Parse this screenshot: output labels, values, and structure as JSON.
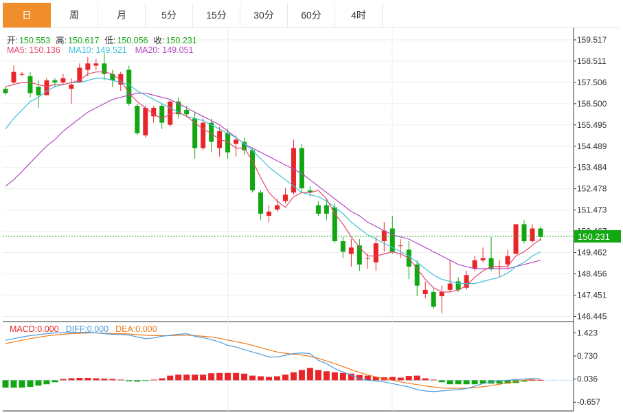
{
  "tabs": [
    {
      "label": "日",
      "active": true
    },
    {
      "label": "周",
      "active": false
    },
    {
      "label": "月",
      "active": false
    },
    {
      "label": "5分",
      "active": false
    },
    {
      "label": "15分",
      "active": false
    },
    {
      "label": "30分",
      "active": false
    },
    {
      "label": "60分",
      "active": false
    },
    {
      "label": "4时",
      "active": false
    }
  ],
  "ohlc": {
    "open_label": "开:",
    "open": "150.553",
    "high_label": "高:",
    "high": "150.617",
    "low_label": "低:",
    "low": "150.056",
    "close_label": "收:",
    "close": "150.231"
  },
  "ma_legend": {
    "ma5": "MA5: 150.136",
    "ma10": "MA10: 149.521",
    "ma20": "MA20: 149.051"
  },
  "macd_legend": {
    "macd": "MACD:0.000",
    "diff": "DIFF:0.000",
    "dea": "DEA:0.000"
  },
  "colors": {
    "up": "#e8262a",
    "down": "#13a613",
    "ma5": "#e6486f",
    "ma10": "#3fc0d8",
    "ma20": "#b24ac2",
    "diff": "#4d9bdd",
    "dea": "#f07b1a",
    "last_price": "#12a812",
    "active_tab": "#f08e2c"
  },
  "chart_data": {
    "type": "candlestick",
    "price_axis": {
      "ticks": [
        "159.517",
        "158.511",
        "157.506",
        "156.500",
        "155.495",
        "154.489",
        "153.484",
        "152.478",
        "151.473",
        "150.467",
        "149.462",
        "148.456",
        "147.451",
        "146.445"
      ],
      "range": [
        146.2,
        160.1
      ],
      "last_price": "150.231"
    },
    "macd_axis": {
      "ticks": [
        "1.423",
        "0.730",
        "0.036",
        "-0.657"
      ],
      "range": [
        -0.92,
        1.72
      ]
    },
    "candles": [
      [
        157.2,
        157.0,
        157.3,
        156.9
      ],
      [
        157.5,
        158.0,
        158.3,
        157.4
      ],
      [
        157.9,
        157.9,
        158.0,
        157.8
      ],
      [
        157.8,
        157.0,
        158.0,
        156.8
      ],
      [
        157.3,
        156.9,
        157.6,
        156.3
      ],
      [
        156.9,
        157.6,
        157.7,
        156.9
      ],
      [
        157.6,
        157.5,
        157.7,
        157.3
      ],
      [
        157.5,
        157.7,
        157.9,
        157.4
      ],
      [
        157.2,
        157.4,
        157.7,
        156.5
      ],
      [
        157.5,
        158.2,
        158.4,
        157.5
      ],
      [
        158.1,
        158.4,
        158.7,
        157.8
      ],
      [
        158.3,
        158.4,
        158.6,
        158.1
      ],
      [
        158.4,
        157.9,
        158.9,
        157.6
      ],
      [
        157.9,
        157.6,
        158.1,
        157.3
      ],
      [
        157.4,
        157.9,
        158.0,
        157.1
      ],
      [
        158.1,
        156.5,
        158.3,
        156.4
      ],
      [
        156.4,
        155.1,
        156.5,
        155.0
      ],
      [
        155.0,
        156.3,
        156.4,
        154.9
      ],
      [
        155.9,
        156.3,
        156.4,
        155.6
      ],
      [
        156.4,
        155.6,
        156.5,
        155.3
      ],
      [
        155.5,
        156.6,
        156.7,
        155.4
      ],
      [
        156.6,
        156.0,
        156.8,
        155.8
      ],
      [
        156.2,
        156.0,
        156.4,
        155.9
      ],
      [
        155.8,
        154.4,
        156.1,
        153.9
      ],
      [
        154.4,
        155.6,
        155.8,
        154.3
      ],
      [
        155.6,
        154.7,
        155.8,
        154.2
      ],
      [
        154.4,
        155.2,
        155.4,
        154.0
      ],
      [
        155.1,
        154.2,
        155.3,
        153.9
      ],
      [
        154.6,
        154.8,
        155.0,
        154.0
      ],
      [
        154.7,
        154.3,
        154.9,
        154.1
      ],
      [
        154.3,
        152.4,
        154.4,
        152.3
      ],
      [
        152.3,
        151.3,
        152.4,
        151.0
      ],
      [
        151.2,
        151.4,
        151.7,
        150.9
      ],
      [
        151.5,
        151.7,
        152.0,
        151.4
      ],
      [
        151.9,
        152.2,
        152.5,
        151.8
      ],
      [
        152.3,
        154.4,
        154.8,
        152.2
      ],
      [
        154.4,
        152.5,
        154.6,
        152.3
      ],
      [
        152.4,
        152.3,
        152.6,
        152.1
      ],
      [
        151.7,
        151.3,
        151.9,
        151.2
      ],
      [
        151.7,
        151.3,
        152.0,
        151.0
      ],
      [
        151.6,
        150.0,
        151.8,
        149.9
      ],
      [
        150.0,
        149.5,
        150.2,
        149.2
      ],
      [
        149.4,
        149.7,
        150.1,
        148.8
      ],
      [
        149.8,
        148.9,
        150.1,
        148.6
      ],
      [
        149.2,
        149.2,
        149.4,
        148.7
      ],
      [
        149.0,
        149.9,
        150.2,
        148.6
      ],
      [
        150.0,
        150.5,
        150.9,
        149.5
      ],
      [
        150.6,
        149.5,
        151.2,
        149.4
      ],
      [
        149.8,
        149.8,
        150.1,
        149.2
      ],
      [
        149.6,
        148.8,
        150.0,
        148.2
      ],
      [
        148.9,
        147.9,
        149.1,
        147.4
      ],
      [
        147.5,
        147.7,
        148.1,
        147.3
      ],
      [
        147.6,
        146.9,
        147.8,
        146.8
      ],
      [
        147.4,
        147.6,
        147.9,
        146.6
      ],
      [
        147.7,
        148.0,
        149.1,
        147.6
      ],
      [
        148.1,
        147.7,
        148.3,
        147.6
      ],
      [
        147.8,
        148.4,
        148.6,
        147.7
      ],
      [
        148.7,
        149.1,
        149.3,
        148.6
      ],
      [
        149.1,
        149.2,
        149.7,
        149.0
      ],
      [
        149.2,
        148.7,
        150.2,
        148.6
      ],
      [
        148.8,
        148.8,
        149.1,
        148.3
      ],
      [
        148.9,
        149.3,
        149.6,
        148.7
      ],
      [
        149.4,
        150.8,
        150.8,
        149.4
      ],
      [
        150.8,
        150.0,
        151.0,
        149.9
      ],
      [
        150.0,
        150.6,
        150.8,
        149.9
      ],
      [
        150.6,
        150.2,
        150.7,
        150.0
      ]
    ],
    "ma5": [
      157.3,
      157.4,
      157.5,
      157.5,
      157.4,
      157.3,
      157.4,
      157.4,
      157.5,
      157.6,
      157.9,
      158.0,
      158.0,
      157.9,
      157.6,
      157.0,
      156.6,
      156.3,
      156.0,
      155.8,
      156.0,
      156.1,
      155.9,
      155.6,
      155.3,
      155.1,
      154.8,
      154.7,
      154.4,
      154.4,
      153.8,
      153.0,
      152.3,
      151.9,
      151.6,
      152.1,
      152.3,
      152.3,
      152.4,
      152.0,
      151.3,
      150.8,
      150.2,
      149.7,
      149.3,
      149.3,
      149.4,
      149.5,
      149.4,
      149.2,
      148.7,
      148.2,
      147.8,
      147.6,
      147.6,
      147.7,
      147.9,
      148.3,
      148.6,
      148.8,
      148.8,
      148.8,
      149.3,
      149.5,
      149.8,
      150.1
    ],
    "ma10": [
      155.3,
      155.8,
      156.2,
      156.6,
      156.8,
      157.1,
      157.3,
      157.4,
      157.5,
      157.5,
      157.6,
      157.7,
      157.7,
      157.6,
      157.5,
      157.4,
      157.1,
      156.9,
      156.7,
      156.5,
      156.3,
      156.1,
      155.9,
      155.8,
      155.7,
      155.5,
      155.3,
      155.1,
      154.9,
      154.6,
      154.3,
      153.9,
      153.5,
      153.2,
      152.9,
      152.6,
      152.3,
      152.2,
      152.1,
      151.9,
      151.6,
      151.3,
      150.9,
      150.6,
      150.3,
      150.1,
      149.9,
      149.7,
      149.5,
      149.3,
      149.0,
      148.7,
      148.4,
      148.2,
      148.1,
      148.0,
      148.0,
      148.0,
      148.1,
      148.2,
      148.3,
      148.5,
      148.8,
      149.0,
      149.3,
      149.5
    ],
    "ma20": [
      152.6,
      152.9,
      153.3,
      153.7,
      154.1,
      154.5,
      154.8,
      155.2,
      155.5,
      155.8,
      156.1,
      156.3,
      156.5,
      156.7,
      156.8,
      156.9,
      157.0,
      157.0,
      156.9,
      156.8,
      156.7,
      156.5,
      156.3,
      156.1,
      155.9,
      155.7,
      155.5,
      155.2,
      154.9,
      154.6,
      154.4,
      154.2,
      154.0,
      153.8,
      153.6,
      153.4,
      153.2,
      152.9,
      152.6,
      152.3,
      152.0,
      151.7,
      151.4,
      151.2,
      150.9,
      150.7,
      150.5,
      150.3,
      150.2,
      150.1,
      149.9,
      149.7,
      149.5,
      149.3,
      149.1,
      148.9,
      148.8,
      148.7,
      148.7,
      148.7,
      148.7,
      148.7,
      148.8,
      148.9,
      149.0,
      149.1
    ],
    "diff": [
      1.2,
      1.25,
      1.3,
      1.34,
      1.37,
      1.4,
      1.42,
      1.43,
      1.44,
      1.44,
      1.44,
      1.42,
      1.4,
      1.38,
      1.37,
      1.36,
      1.3,
      1.25,
      1.27,
      1.32,
      1.35,
      1.38,
      1.4,
      1.32,
      1.28,
      1.22,
      1.15,
      1.05,
      1.0,
      0.92,
      0.85,
      0.78,
      0.7,
      0.7,
      0.75,
      0.8,
      0.82,
      0.8,
      0.6,
      0.5,
      0.35,
      0.25,
      0.15,
      0.05,
      0.0,
      -0.02,
      -0.05,
      -0.1,
      -0.15,
      -0.2,
      -0.28,
      -0.32,
      -0.34,
      -0.32,
      -0.3,
      -0.28,
      -0.25,
      -0.18,
      -0.1,
      -0.05,
      -0.02,
      0.0,
      0.02,
      0.04,
      0.05,
      0.04
    ],
    "dea": [
      1.1,
      1.15,
      1.2,
      1.25,
      1.29,
      1.33,
      1.36,
      1.38,
      1.4,
      1.41,
      1.42,
      1.42,
      1.41,
      1.4,
      1.4,
      1.39,
      1.37,
      1.35,
      1.34,
      1.34,
      1.34,
      1.35,
      1.35,
      1.34,
      1.32,
      1.3,
      1.26,
      1.21,
      1.16,
      1.11,
      1.05,
      0.98,
      0.91,
      0.85,
      0.81,
      0.78,
      0.76,
      0.72,
      0.66,
      0.58,
      0.5,
      0.41,
      0.32,
      0.24,
      0.16,
      0.1,
      0.05,
      0.0,
      -0.05,
      -0.09,
      -0.13,
      -0.17,
      -0.2,
      -0.23,
      -0.24,
      -0.24,
      -0.24,
      -0.22,
      -0.19,
      -0.16,
      -0.12,
      -0.08,
      -0.04,
      0.0,
      0.03,
      0.04
    ],
    "macd": [
      -0.22,
      -0.22,
      -0.22,
      -0.2,
      -0.16,
      -0.12,
      -0.06,
      0.04,
      0.06,
      0.07,
      0.07,
      0.06,
      0.05,
      0.04,
      0.02,
      -0.03,
      -0.04,
      -0.01,
      0.02,
      0.06,
      0.14,
      0.17,
      0.17,
      0.17,
      0.17,
      0.21,
      0.22,
      0.22,
      0.22,
      0.2,
      0.14,
      0.12,
      0.1,
      0.12,
      0.17,
      0.24,
      0.31,
      0.37,
      0.31,
      0.27,
      0.24,
      0.22,
      0.2,
      0.16,
      0.14,
      0.1,
      0.09,
      0.1,
      0.08,
      0.13,
      0.14,
      0.06,
      0.02,
      -0.06,
      -0.12,
      -0.12,
      -0.12,
      -0.12,
      -0.1,
      -0.1,
      -0.1,
      -0.1,
      -0.08,
      -0.04,
      0.01,
      0.01
    ]
  }
}
